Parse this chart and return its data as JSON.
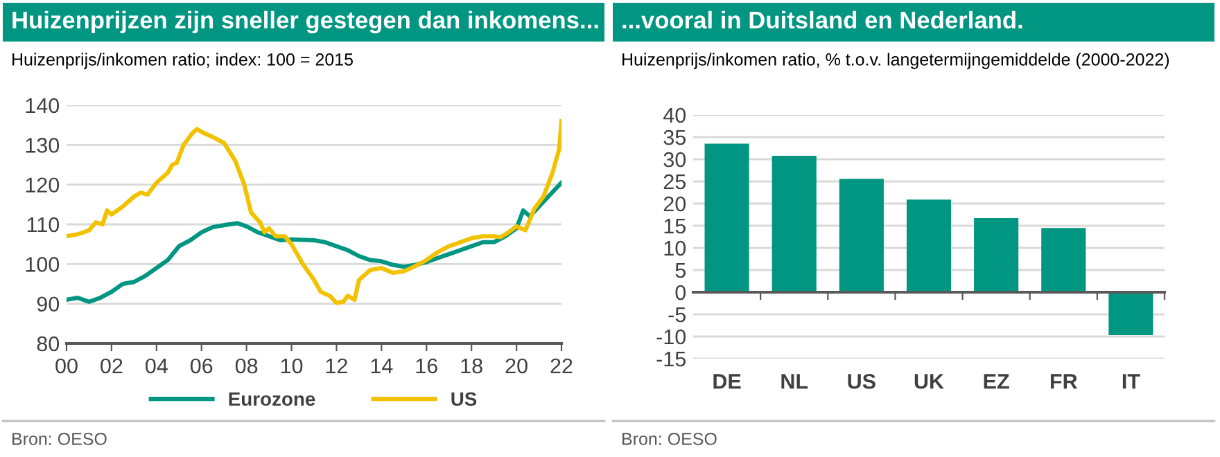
{
  "chart_data": [
    {
      "type": "line",
      "title": "Huizenprijzen zijn sneller gestegen dan inkomens...",
      "subtitle": "Huizenprijs/inkomen ratio; index: 100 = 2015",
      "annotations": [
        "Bron: OESO"
      ],
      "xlim": [
        2000,
        2022
      ],
      "xticks": [
        {
          "value": 2000,
          "label": "00"
        },
        {
          "value": 2002,
          "label": "02"
        },
        {
          "value": 2004,
          "label": "04"
        },
        {
          "value": 2006,
          "label": "06"
        },
        {
          "value": 2008,
          "label": "08"
        },
        {
          "value": 2010,
          "label": "10"
        },
        {
          "value": 2012,
          "label": "12"
        },
        {
          "value": 2014,
          "label": "14"
        },
        {
          "value": 2016,
          "label": "16"
        },
        {
          "value": 2018,
          "label": "18"
        },
        {
          "value": 2020,
          "label": "20"
        },
        {
          "value": 2022,
          "label": "22"
        }
      ],
      "ylim": [
        80,
        140
      ],
      "yticks": [
        80,
        90,
        100,
        110,
        120,
        130,
        140
      ],
      "grid": "y",
      "legend": "bottom",
      "series": [
        {
          "name": "Eurozone",
          "color": "#009682",
          "x": [
            2000,
            2000.5,
            2001,
            2001.5,
            2002,
            2002.5,
            2003,
            2003.5,
            2004,
            2004.5,
            2005,
            2005.5,
            2006,
            2006.5,
            2007,
            2007.6,
            2008,
            2008.5,
            2009,
            2009.5,
            2010,
            2011,
            2011.5,
            2012,
            2012.5,
            2013,
            2013.5,
            2014,
            2014.5,
            2015,
            2015.5,
            2016,
            2016.5,
            2017,
            2017.5,
            2018,
            2018.5,
            2019,
            2019.5,
            2020,
            2020.3,
            2020.6,
            2021,
            2021.5,
            2022
          ],
          "values": [
            91,
            91.5,
            90.5,
            91.5,
            93,
            95,
            95.5,
            97,
            99,
            101,
            104.5,
            106,
            108,
            109.3,
            109.8,
            110.3,
            109.5,
            108,
            107,
            106,
            106.2,
            106,
            105.5,
            104.5,
            103.5,
            102,
            101,
            100.7,
            99.8,
            99.3,
            99.8,
            100.5,
            101.5,
            102.5,
            103.5,
            104.5,
            105.5,
            105.5,
            107,
            109,
            113.5,
            112,
            114.5,
            117.5,
            120.5
          ]
        },
        {
          "name": "US",
          "color": "#f2c200",
          "x": [
            2000,
            2000.5,
            2001,
            2001.3,
            2001.6,
            2001.8,
            2002,
            2002.5,
            2003,
            2003.3,
            2003.6,
            2004,
            2004.5,
            2004.7,
            2004.9,
            2005.2,
            2005.6,
            2005.8,
            2006,
            2006.5,
            2007,
            2007.5,
            2007.9,
            2008.2,
            2008.6,
            2008.8,
            2009,
            2009.3,
            2009.7,
            2010,
            2010.5,
            2011,
            2011.3,
            2011.7,
            2012,
            2012.3,
            2012.5,
            2012.8,
            2013,
            2013.5,
            2014,
            2014.5,
            2015,
            2015.5,
            2016,
            2016.5,
            2017,
            2017.5,
            2018,
            2018.5,
            2019,
            2019.3,
            2019.6,
            2020,
            2020.4,
            2020.8,
            2021.2,
            2021.6,
            2021.9,
            2022
          ],
          "values": [
            107,
            107.5,
            108.5,
            110.5,
            110,
            113.5,
            112.5,
            114.5,
            117,
            118,
            117.5,
            120.5,
            123,
            125,
            125.5,
            130,
            133,
            134,
            133.3,
            132,
            130.5,
            126,
            120,
            113,
            110.5,
            108,
            109,
            107,
            107,
            105,
            100,
            96,
            93,
            92,
            90.2,
            90.5,
            92,
            91,
            96,
            98.5,
            99,
            97.8,
            98.2,
            99.5,
            101,
            103,
            104.5,
            105.5,
            106.5,
            107,
            107,
            106.8,
            107.8,
            109.5,
            108.5,
            114,
            117,
            123,
            129,
            136
          ]
        }
      ]
    },
    {
      "type": "bar",
      "title": "...vooral in Duitsland en Nederland.",
      "subtitle": "Huizenprijs/inkomen ratio, % t.o.v. langetermijngemiddelde (2000-2022)",
      "annotations": [
        "Bron: OESO"
      ],
      "categories": [
        "DE",
        "NL",
        "US",
        "UK",
        "EZ",
        "FR",
        "IT"
      ],
      "values": [
        33.5,
        30.8,
        25.6,
        20.9,
        16.7,
        14.5,
        -9.7
      ],
      "color": "#009682",
      "ylim": [
        -15,
        40
      ],
      "yticks": [
        -15,
        -10,
        -5,
        0,
        5,
        10,
        15,
        20,
        25,
        30,
        35,
        40
      ],
      "grid": "y"
    }
  ]
}
